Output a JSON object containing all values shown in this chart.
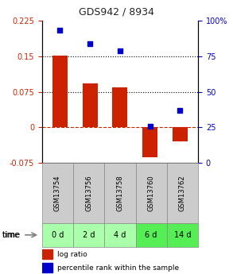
{
  "title": "GDS942 / 8934",
  "samples": [
    "GSM13754",
    "GSM13756",
    "GSM13758",
    "GSM13760",
    "GSM13762"
  ],
  "time_labels": [
    "0 d",
    "2 d",
    "4 d",
    "6 d",
    "14 d"
  ],
  "log_ratio": [
    0.152,
    0.092,
    0.085,
    -0.062,
    -0.03
  ],
  "percentile_rank": [
    93,
    84,
    79,
    26,
    37
  ],
  "ylim_left": [
    -0.075,
    0.225
  ],
  "ylim_right": [
    0,
    100
  ],
  "yticks_left": [
    -0.075,
    0,
    0.075,
    0.15,
    0.225
  ],
  "yticks_right": [
    0,
    25,
    50,
    75,
    100
  ],
  "ytick_labels_left": [
    "-0.075",
    "0",
    "0.075",
    "0.15",
    "0.225"
  ],
  "ytick_labels_right": [
    "0",
    "25",
    "50",
    "75",
    "100%"
  ],
  "hlines_dotted": [
    0.075,
    0.15
  ],
  "hline_dashed": 0,
  "bar_color": "#cc2200",
  "scatter_color": "#0000cc",
  "bg_color_plot": "#ffffff",
  "bg_color_gsm": "#cccccc",
  "bg_color_time_light": "#aaffaa",
  "bg_color_time_dark": "#55ee55",
  "title_color": "#222222",
  "left_tick_color": "#cc2200",
  "right_tick_color": "#0000cc",
  "bar_width": 0.5
}
